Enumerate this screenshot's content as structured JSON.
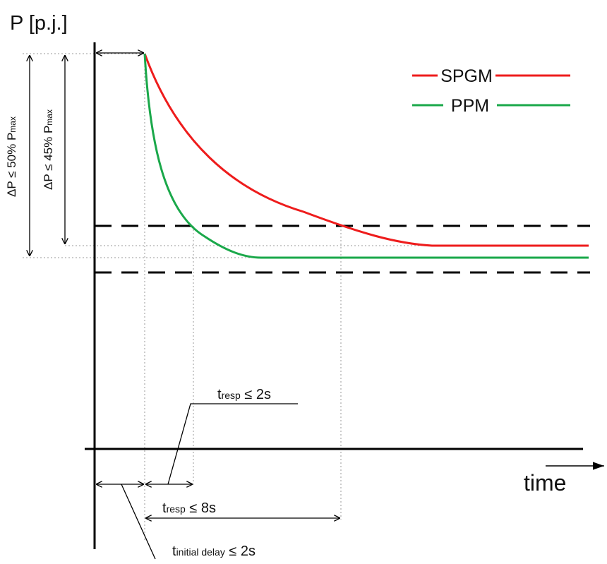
{
  "axes": {
    "y_label": "P [p.j.]",
    "x_label": "time"
  },
  "legend": {
    "spgm": "SPGM",
    "ppm": "PPM",
    "spgm_color": "#ee1c1c",
    "ppm_color": "#1aa84a"
  },
  "limits": {
    "dp50": {
      "prefix": "ΔP ≤ 50% P",
      "sub": "max"
    },
    "dp45": {
      "prefix": "ΔP ≤ 45% P",
      "sub": "max"
    }
  },
  "timing": {
    "tresp2": {
      "t": "t",
      "sub": "resp",
      "rest": " ≤ 2s"
    },
    "tresp8": {
      "t": "t",
      "sub": "resp",
      "rest": " ≤ 8s"
    },
    "tinit": {
      "t": "t",
      "sub": "initial delay",
      "rest": " ≤ 2s"
    }
  }
}
